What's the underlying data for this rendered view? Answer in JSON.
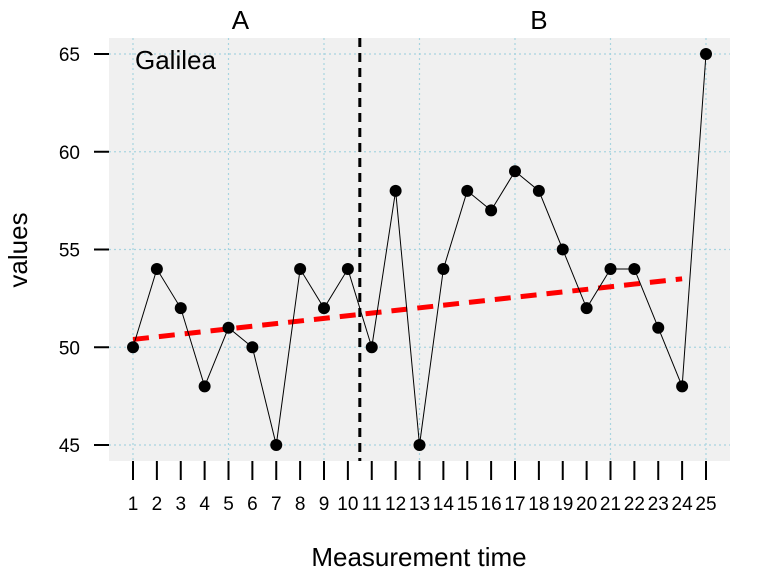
{
  "chart_data": {
    "type": "line",
    "case_label": "Galilea",
    "xlabel": "Measurement time",
    "ylabel": "values",
    "x": [
      1,
      2,
      3,
      4,
      5,
      6,
      7,
      8,
      9,
      10,
      11,
      12,
      13,
      14,
      15,
      16,
      17,
      18,
      19,
      20,
      21,
      22,
      23,
      24,
      25
    ],
    "x_tick_labels": [
      "1",
      "2",
      "3",
      "4",
      "5",
      "6",
      "7",
      "8",
      "9",
      "10",
      "11",
      "12",
      "13",
      "14",
      "15",
      "16",
      "17",
      "18",
      "19",
      "20",
      "21",
      "22",
      "23",
      "24",
      "25"
    ],
    "y_ticks": [
      45,
      50,
      55,
      60,
      65
    ],
    "y_tick_labels": [
      "45",
      "50",
      "55",
      "60",
      "65"
    ],
    "xlim": [
      1,
      25
    ],
    "ylim": [
      45,
      65
    ],
    "grid": true,
    "phases": [
      {
        "label": "A",
        "start": 1,
        "end": 10
      },
      {
        "label": "B",
        "start": 11,
        "end": 25
      }
    ],
    "phase_boundary": 10.5,
    "series": [
      {
        "values": [
          50,
          54,
          52,
          48,
          51,
          50,
          45,
          54,
          52,
          54,
          50,
          58,
          45,
          54,
          58,
          57,
          59,
          58,
          55,
          52,
          54,
          54,
          51,
          48,
          65
        ]
      }
    ],
    "trend_line": {
      "x": [
        1,
        24
      ],
      "y": [
        50.4,
        53.5
      ]
    },
    "colors": {
      "panel_bg": "#f0f0f0",
      "grid": "#a8d4e0",
      "points": "#000000",
      "line": "#000000",
      "trend": "#ff0000",
      "phase_line": "#000000"
    }
  }
}
